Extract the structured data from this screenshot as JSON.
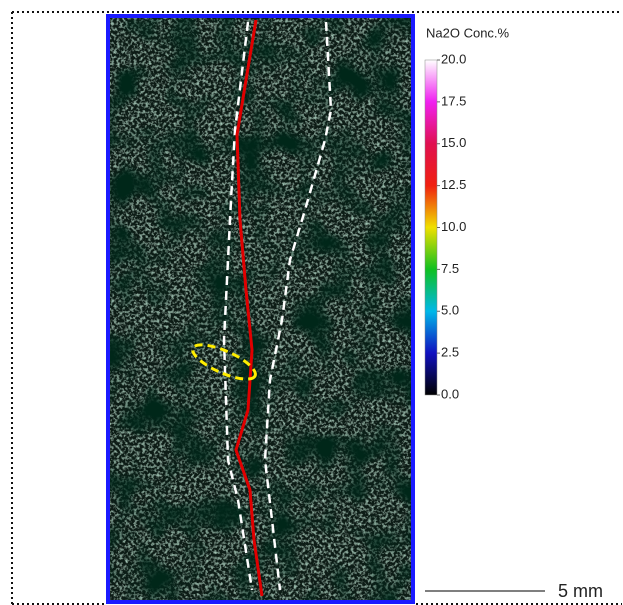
{
  "colorbar": {
    "title": "Na2O  Conc.%",
    "ticks": [
      {
        "value": 0,
        "label": "0.0"
      },
      {
        "value": 2.5,
        "label": "2.5"
      },
      {
        "value": 5,
        "label": "5.0"
      },
      {
        "value": 7.5,
        "label": "7.5"
      },
      {
        "value": 10,
        "label": "10.0"
      },
      {
        "value": 12.5,
        "label": "12.5"
      },
      {
        "value": 15,
        "label": "15.0"
      },
      {
        "value": 17.5,
        "label": "17.5"
      },
      {
        "value": 20,
        "label": "20.0"
      }
    ]
  },
  "scale_bar": {
    "label": "5 mm"
  }
}
